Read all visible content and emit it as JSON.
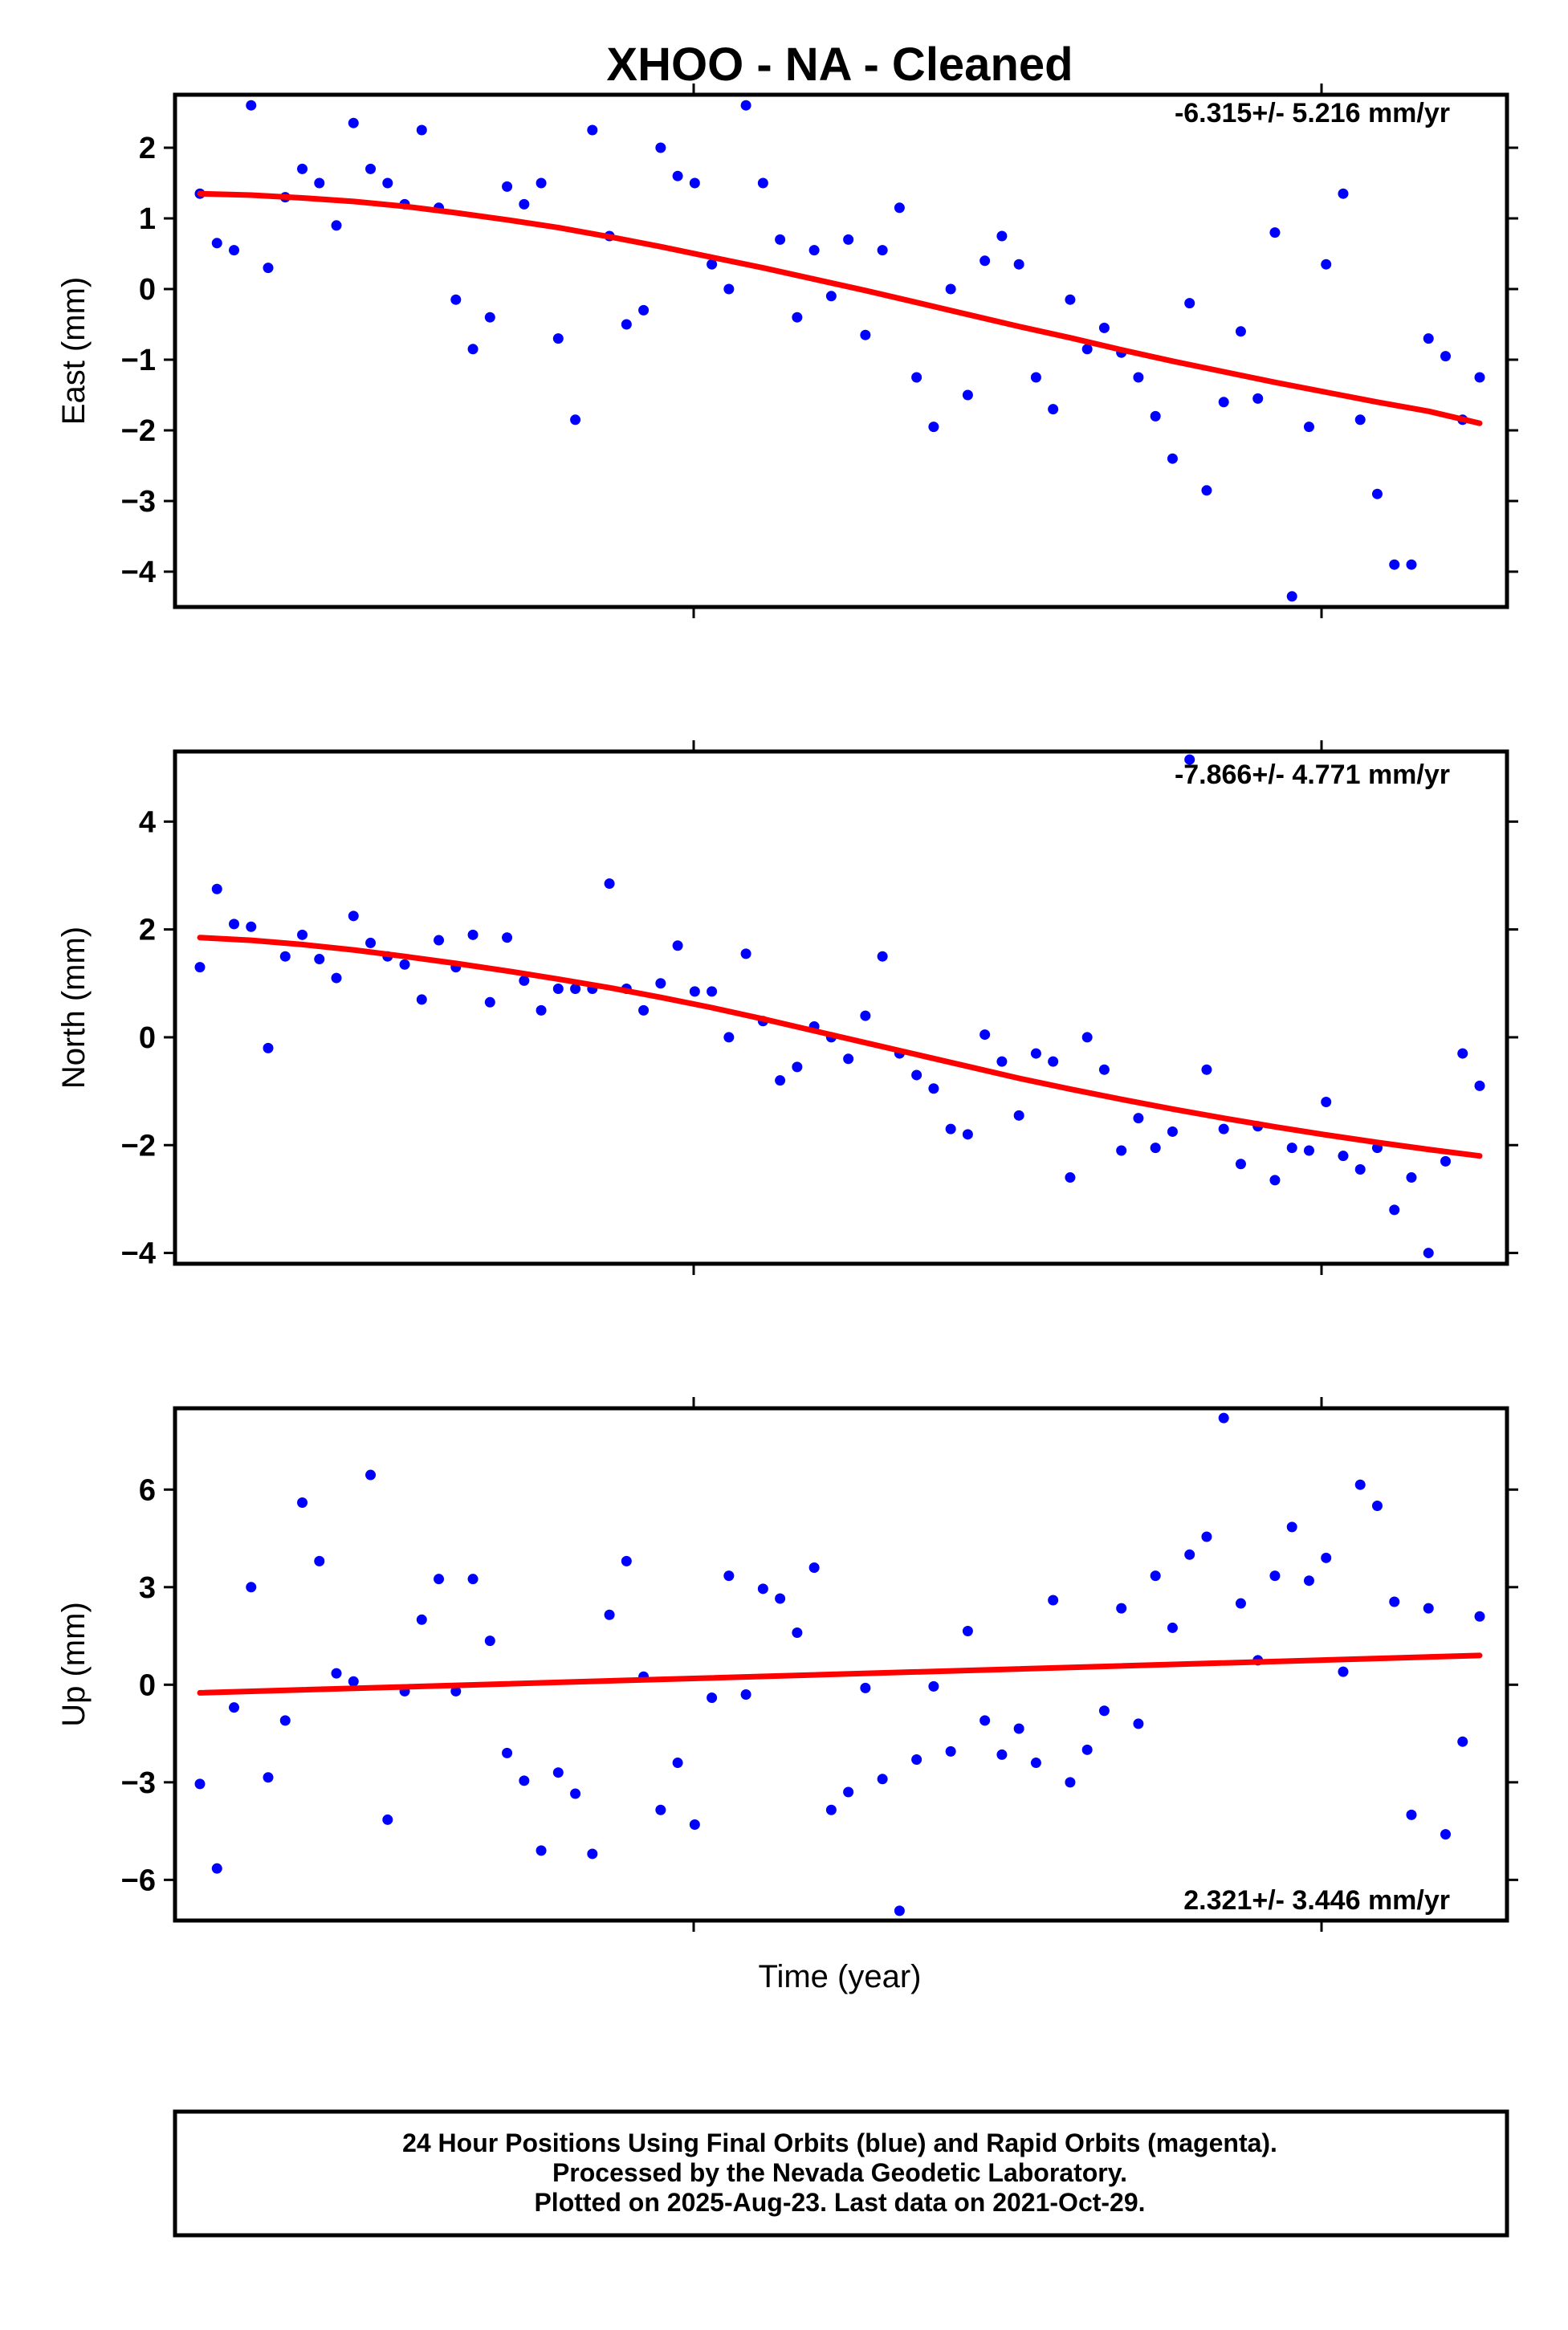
{
  "title": "XHOO  - NA - Cleaned",
  "colors": {
    "final_orbits": "#0000ff",
    "trend": "#ff0000",
    "frame": "#000000"
  },
  "chart_data": [
    {
      "type": "scatter",
      "ylabel": "East (mm)",
      "ylim": [
        -4.5,
        2.75
      ],
      "yticks": [
        2,
        1,
        0,
        -1,
        -2,
        -3,
        -4
      ],
      "ytick_labels": [
        "2",
        "1",
        "0",
        "−1",
        "−2",
        "−3",
        "−4"
      ],
      "rate": "-6.315+/- 5.216 mm/yr",
      "series": [
        {
          "values": [
            1.35,
            0.65,
            0.55,
            2.6,
            0.3,
            1.3,
            1.7,
            1.5,
            0.9,
            2.35,
            1.7,
            1.5,
            1.2,
            2.25,
            1.15,
            -0.15,
            -0.85,
            -0.4,
            1.45,
            1.2,
            1.5,
            -0.7,
            -1.85,
            2.25,
            0.75,
            -0.5,
            -0.3,
            2.0,
            1.6,
            1.5,
            0.35,
            0.0,
            2.6,
            1.5,
            0.7,
            -0.4,
            0.55,
            -0.1,
            0.7,
            -0.65,
            0.55,
            1.15,
            -1.25,
            -1.95,
            0.0,
            -1.5,
            0.4,
            0.75,
            0.35,
            -1.25,
            -1.7,
            -0.15,
            -0.85,
            -0.55,
            -0.9,
            -1.25,
            -1.8,
            -2.4,
            -0.2,
            -2.85,
            -1.6,
            -0.6,
            -1.55,
            0.8,
            -4.35,
            -1.95,
            0.35,
            1.35,
            -1.85,
            -2.9,
            -3.9,
            -3.9,
            -0.7,
            -0.95,
            -1.85,
            -1.25
          ]
        }
      ],
      "trend": {
        "type": "line",
        "values": [
          1.35,
          1.33,
          1.29,
          1.24,
          1.17,
          1.08,
          0.98,
          0.87,
          0.74,
          0.6,
          0.45,
          0.3,
          0.14,
          -0.02,
          -0.19,
          -0.36,
          -0.53,
          -0.69,
          -0.86,
          -1.02,
          -1.17,
          -1.32,
          -1.46,
          -1.6,
          -1.73,
          -1.9
        ]
      }
    },
    {
      "type": "scatter",
      "ylabel": "North (mm)",
      "ylim": [
        -4.2,
        5.3
      ],
      "yticks": [
        4,
        2,
        0,
        -2,
        -4
      ],
      "ytick_labels": [
        "4",
        "2",
        "0",
        "−2",
        "−4"
      ],
      "rate": "-7.866+/- 4.771 mm/yr",
      "series": [
        {
          "values": [
            1.3,
            2.75,
            2.1,
            2.05,
            -0.2,
            1.5,
            1.9,
            1.45,
            1.1,
            2.25,
            1.75,
            1.5,
            1.35,
            0.7,
            1.8,
            1.3,
            1.9,
            0.65,
            1.85,
            1.05,
            0.5,
            0.9,
            0.9,
            0.9,
            2.85,
            0.9,
            0.5,
            1.0,
            1.7,
            0.85,
            0.85,
            0.0,
            1.55,
            0.3,
            -0.8,
            -0.55,
            0.2,
            0.0,
            -0.4,
            0.4,
            1.5,
            -0.3,
            -0.7,
            -0.95,
            -1.7,
            -1.8,
            0.05,
            -0.45,
            -1.45,
            -0.3,
            -0.45,
            -2.6,
            0.0,
            -0.6,
            -2.1,
            -1.5,
            -2.05,
            -1.75,
            5.15,
            -0.6,
            -1.7,
            -2.35,
            -1.65,
            -2.65,
            -2.05,
            -2.1,
            -1.2,
            -2.2,
            -2.45,
            -2.05,
            -3.2,
            -2.6,
            -4.0,
            -2.3,
            -0.3,
            -0.9
          ]
        }
      ],
      "trend": {
        "type": "line",
        "values": [
          1.85,
          1.8,
          1.72,
          1.62,
          1.5,
          1.37,
          1.23,
          1.08,
          0.92,
          0.74,
          0.55,
          0.34,
          0.12,
          -0.1,
          -0.32,
          -0.54,
          -0.76,
          -0.96,
          -1.15,
          -1.33,
          -1.5,
          -1.66,
          -1.81,
          -1.95,
          -2.08,
          -2.2
        ]
      }
    },
    {
      "type": "scatter",
      "ylabel": "Up (mm)",
      "ylim": [
        -7.25,
        8.5
      ],
      "yticks": [
        6,
        3,
        0,
        -3,
        -6
      ],
      "ytick_labels": [
        "6",
        "3",
        "0",
        "−3",
        "−6"
      ],
      "rate": "2.321+/- 3.446 mm/yr",
      "series": [
        {
          "values": [
            -3.05,
            -5.65,
            -0.7,
            3.0,
            -2.85,
            -1.1,
            5.6,
            3.8,
            0.35,
            0.1,
            6.45,
            -4.15,
            -0.2,
            2.0,
            3.25,
            -0.2,
            3.25,
            1.35,
            -2.1,
            -2.95,
            -5.1,
            -2.7,
            -3.35,
            -5.2,
            2.15,
            3.8,
            0.25,
            -3.85,
            -2.4,
            -4.3,
            -0.4,
            3.35,
            -0.3,
            2.95,
            2.65,
            1.6,
            3.6,
            -3.85,
            -3.3,
            -0.1,
            -2.9,
            -6.95,
            -2.3,
            -0.05,
            -2.05,
            1.65,
            -1.1,
            -2.15,
            -1.35,
            -2.4,
            2.6,
            -3.0,
            -2.0,
            -0.8,
            2.35,
            -1.2,
            3.35,
            1.75,
            4.0,
            4.55,
            8.2,
            2.5,
            0.75,
            3.35,
            4.85,
            3.2,
            3.9,
            0.4,
            6.15,
            5.5,
            2.55,
            -4.0,
            2.35,
            -4.6,
            -1.75,
            2.1
          ]
        }
      ],
      "trend": {
        "type": "line",
        "values": [
          -0.25,
          0.9
        ]
      }
    }
  ],
  "x_axis_label": "Time (year)",
  "footer_lines": [
    "24 Hour Positions Using Final Orbits (blue) and Rapid Orbits (magenta).",
    "Processed by the Nevada Geodetic Laboratory.",
    "Plotted on 2025-Aug-23. Last data on 2021-Oct-29."
  ]
}
